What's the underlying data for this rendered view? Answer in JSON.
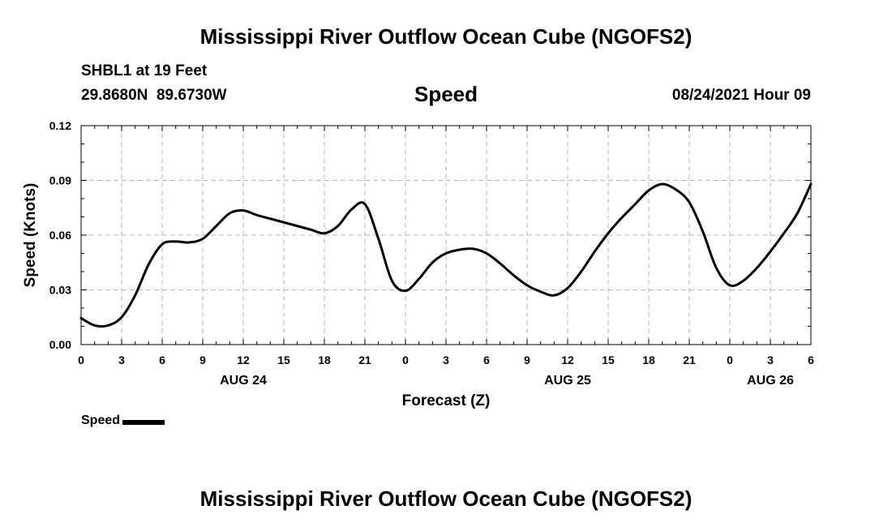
{
  "chart_data": {
    "type": "line",
    "title": "Mississippi River Outflow Ocean Cube (NGOFS2)",
    "footer_title": "Mississippi River Outflow Ocean Cube (NGOFS2)",
    "station": "SHBL1 at 19 Feet",
    "coordinates": "29.8680N  89.6730W",
    "subtitle": "Speed",
    "date": "08/24/2021 Hour 09",
    "xlabel": "Forecast (Z)",
    "ylabel": "Speed (Knots)",
    "ylim": [
      0,
      0.12
    ],
    "xlim": [
      0,
      54
    ],
    "grid": true,
    "y_ticks": [
      {
        "value": 0,
        "label": "0.00"
      },
      {
        "value": 0.03,
        "label": "0.03"
      },
      {
        "value": 0.06,
        "label": "0.06"
      },
      {
        "value": 0.09,
        "label": "0.09"
      },
      {
        "value": 0.12,
        "label": "0.12"
      }
    ],
    "x_ticks": [
      {
        "value": 0,
        "label": "0"
      },
      {
        "value": 3,
        "label": "3"
      },
      {
        "value": 6,
        "label": "6"
      },
      {
        "value": 9,
        "label": "9"
      },
      {
        "value": 12,
        "label": "12"
      },
      {
        "value": 15,
        "label": "15"
      },
      {
        "value": 18,
        "label": "18"
      },
      {
        "value": 21,
        "label": "21"
      },
      {
        "value": 24,
        "label": "0"
      },
      {
        "value": 27,
        "label": "3"
      },
      {
        "value": 30,
        "label": "6"
      },
      {
        "value": 33,
        "label": "9"
      },
      {
        "value": 36,
        "label": "12"
      },
      {
        "value": 39,
        "label": "15"
      },
      {
        "value": 42,
        "label": "18"
      },
      {
        "value": 45,
        "label": "21"
      },
      {
        "value": 48,
        "label": "0"
      },
      {
        "value": 51,
        "label": "3"
      },
      {
        "value": 54,
        "label": "6"
      }
    ],
    "date_labels": [
      {
        "value": 12,
        "label": "AUG 24"
      },
      {
        "value": 36,
        "label": "AUG 25"
      },
      {
        "value": 51,
        "label": "AUG 26"
      }
    ],
    "legend": {
      "label": "Speed",
      "position": "bottom-left"
    },
    "series": [
      {
        "name": "Speed",
        "color": "#000000",
        "x": [
          0,
          1,
          2,
          3,
          4,
          5,
          6,
          7,
          8,
          9,
          10,
          11,
          12,
          13,
          14,
          15,
          16,
          17,
          18,
          19,
          20,
          21,
          22,
          23,
          24,
          25,
          26,
          27,
          28,
          29,
          30,
          31,
          32,
          33,
          34,
          35,
          36,
          37,
          38,
          39,
          40,
          41,
          42,
          43,
          44,
          45,
          46,
          47,
          48,
          49,
          50,
          51,
          52,
          53,
          54
        ],
        "y": [
          0.0145,
          0.0105,
          0.0105,
          0.015,
          0.027,
          0.044,
          0.055,
          0.0565,
          0.056,
          0.058,
          0.065,
          0.072,
          0.0735,
          0.071,
          0.069,
          0.067,
          0.065,
          0.063,
          0.061,
          0.065,
          0.074,
          0.077,
          0.058,
          0.035,
          0.0295,
          0.036,
          0.045,
          0.05,
          0.052,
          0.0525,
          0.05,
          0.0445,
          0.038,
          0.0325,
          0.029,
          0.027,
          0.031,
          0.04,
          0.051,
          0.061,
          0.0695,
          0.077,
          0.0845,
          0.088,
          0.085,
          0.078,
          0.062,
          0.042,
          0.0325,
          0.035,
          0.042,
          0.051,
          0.061,
          0.072,
          0.088
        ]
      }
    ]
  }
}
